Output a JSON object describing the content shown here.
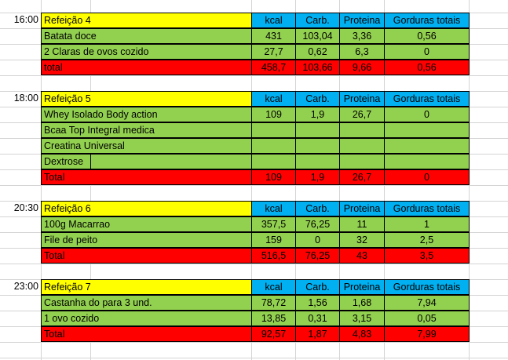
{
  "columns": [
    "kcal",
    "Carb.",
    "Proteina",
    "Gorduras totais"
  ],
  "meals": [
    {
      "time": "16:00",
      "title": "Refeição 4",
      "items": [
        {
          "name": "Batata doce",
          "values": [
            "431",
            "103,04",
            "3,36",
            "0,56"
          ]
        },
        {
          "name": "2 Claras de ovos cozido",
          "values": [
            "27,7",
            "0,62",
            "6,3",
            "0"
          ]
        }
      ],
      "total": {
        "label": "total",
        "values": [
          "458,7",
          "103,66",
          "9,66",
          "0,56"
        ]
      }
    },
    {
      "time": "18:00",
      "title": "Refeição 5",
      "items": [
        {
          "name": "Whey Isolado Body action",
          "values": [
            "109",
            "1,9",
            "26,7",
            "0"
          ]
        },
        {
          "name": "Bcaa Top Integral medica",
          "values": [
            "",
            "",
            "",
            ""
          ]
        },
        {
          "name": "Creatina Universal",
          "values": [
            "",
            "",
            "",
            ""
          ]
        },
        {
          "name": "Dextrose",
          "values": [
            "",
            "",
            "",
            ""
          ]
        }
      ],
      "total": {
        "label": "Total",
        "values": [
          "109",
          "1,9",
          "26,7",
          "0"
        ]
      }
    },
    {
      "time": "20:30",
      "title": "Refeição 6",
      "items": [
        {
          "name": "100g Macarrao",
          "values": [
            "357,5",
            "76,25",
            "11",
            "1"
          ]
        },
        {
          "name": "File de peito",
          "values": [
            "159",
            "0",
            "32",
            "2,5"
          ]
        }
      ],
      "total": {
        "label": "Total",
        "values": [
          "516,5",
          "76,25",
          "43",
          "3,5"
        ]
      }
    },
    {
      "time": "23:00",
      "title": "Refeição 7",
      "items": [
        {
          "name": "Castanha do para 3 und.",
          "values": [
            "78,72",
            "1,56",
            "1,68",
            "7,94"
          ]
        },
        {
          "name": "1 ovo cozido",
          "values": [
            "13,85",
            "0,31",
            "3,15",
            "0,05"
          ]
        }
      ],
      "total": {
        "label": "Total",
        "values": [
          "92,57",
          "1,87",
          "4,83",
          "7,99"
        ]
      }
    }
  ]
}
